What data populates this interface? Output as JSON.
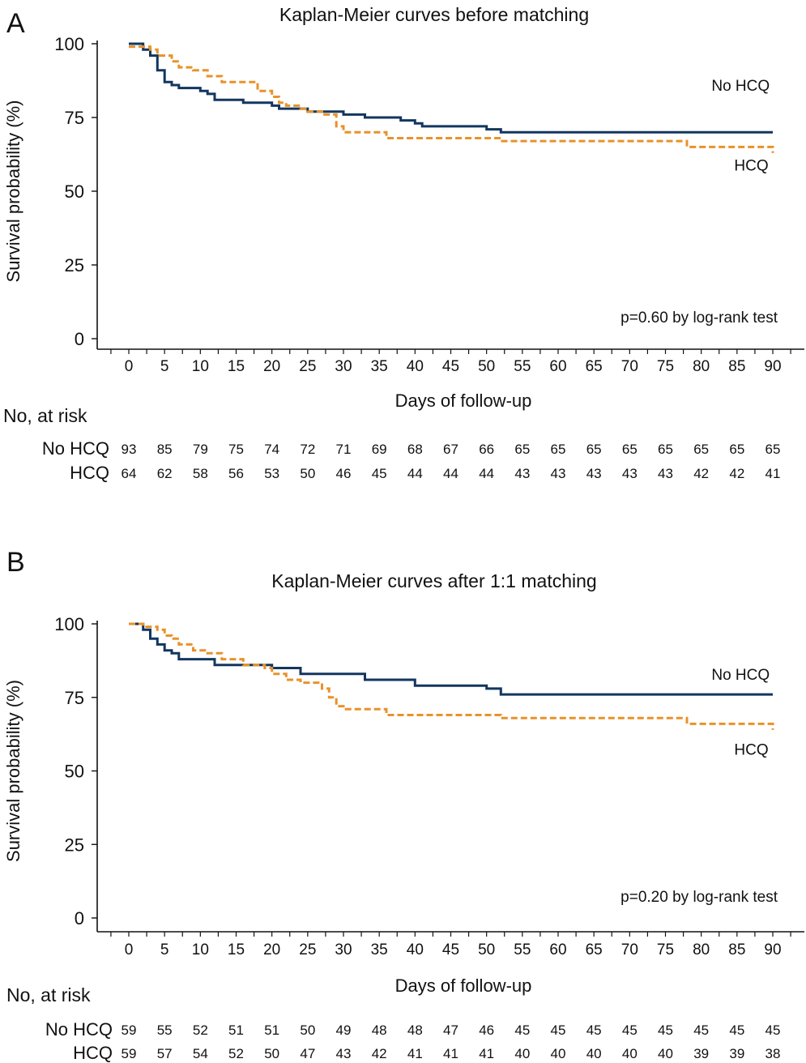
{
  "chart_data": [
    {
      "type": "line",
      "panel_label": "A",
      "title": "Kaplan-Meier curves before matching",
      "xlabel": "Days of follow-up",
      "ylabel": "Survival probability (%)",
      "xlim": [
        0,
        90
      ],
      "ylim": [
        0,
        100
      ],
      "xticks": [
        0,
        5,
        10,
        15,
        20,
        25,
        30,
        35,
        40,
        45,
        50,
        55,
        60,
        65,
        70,
        75,
        80,
        85,
        90
      ],
      "yticks": [
        0,
        25,
        50,
        75,
        100
      ],
      "grid": false,
      "annotation": "p=0.60 by log-rank test",
      "series": [
        {
          "name": "No HCQ",
          "color": "#13365f",
          "dash": "solid",
          "label_x": 85.5,
          "label_y": 84,
          "points": [
            [
              0,
              100
            ],
            [
              2,
              100
            ],
            [
              2,
              98
            ],
            [
              3,
              98
            ],
            [
              3,
              96
            ],
            [
              4,
              96
            ],
            [
              4,
              91
            ],
            [
              5,
              91
            ],
            [
              5,
              87
            ],
            [
              6,
              87
            ],
            [
              6,
              86
            ],
            [
              7,
              86
            ],
            [
              7,
              85
            ],
            [
              10,
              85
            ],
            [
              10,
              84
            ],
            [
              11,
              84
            ],
            [
              11,
              83
            ],
            [
              12,
              83
            ],
            [
              12,
              81
            ],
            [
              16,
              81
            ],
            [
              16,
              80
            ],
            [
              20,
              80
            ],
            [
              20,
              79
            ],
            [
              21,
              79
            ],
            [
              21,
              78
            ],
            [
              25,
              78
            ],
            [
              25,
              77
            ],
            [
              30,
              77
            ],
            [
              30,
              76
            ],
            [
              33,
              76
            ],
            [
              33,
              75
            ],
            [
              38,
              75
            ],
            [
              38,
              74
            ],
            [
              40,
              74
            ],
            [
              40,
              73
            ],
            [
              41,
              73
            ],
            [
              41,
              72
            ],
            [
              50,
              72
            ],
            [
              50,
              71
            ],
            [
              52,
              71
            ],
            [
              52,
              70
            ],
            [
              90,
              70
            ]
          ]
        },
        {
          "name": "HCQ",
          "color": "#e8922a",
          "dash": "dashed",
          "label_x": 87,
          "label_y": 57,
          "points": [
            [
              0,
              99
            ],
            [
              3,
              99
            ],
            [
              3,
              98
            ],
            [
              4,
              98
            ],
            [
              4,
              96
            ],
            [
              6,
              96
            ],
            [
              6,
              94
            ],
            [
              7,
              94
            ],
            [
              7,
              92
            ],
            [
              9,
              92
            ],
            [
              9,
              91
            ],
            [
              11,
              91
            ],
            [
              11,
              89
            ],
            [
              13,
              89
            ],
            [
              13,
              87
            ],
            [
              18,
              87
            ],
            [
              18,
              84
            ],
            [
              20,
              84
            ],
            [
              20,
              82
            ],
            [
              21,
              82
            ],
            [
              21,
              80
            ],
            [
              22,
              80
            ],
            [
              22,
              79
            ],
            [
              24,
              79
            ],
            [
              24,
              78
            ],
            [
              25,
              78
            ],
            [
              25,
              77
            ],
            [
              27,
              77
            ],
            [
              27,
              76
            ],
            [
              29,
              76
            ],
            [
              29,
              72
            ],
            [
              30,
              72
            ],
            [
              30,
              70
            ],
            [
              36,
              70
            ],
            [
              36,
              68
            ],
            [
              52,
              68
            ],
            [
              52,
              67
            ],
            [
              78,
              67
            ],
            [
              78,
              65
            ],
            [
              90,
              65
            ],
            [
              90,
              63
            ]
          ]
        }
      ],
      "at_risk": {
        "header": "No, at risk",
        "days": [
          0,
          5,
          10,
          15,
          20,
          25,
          30,
          35,
          40,
          45,
          50,
          55,
          60,
          65,
          70,
          75,
          80,
          85,
          90
        ],
        "rows": [
          {
            "label": "No HCQ",
            "values": [
              93,
              85,
              79,
              75,
              74,
              72,
              71,
              69,
              68,
              67,
              66,
              65,
              65,
              65,
              65,
              65,
              65,
              65,
              65
            ]
          },
          {
            "label": "HCQ",
            "values": [
              64,
              62,
              58,
              56,
              53,
              50,
              46,
              45,
              44,
              44,
              44,
              43,
              43,
              43,
              43,
              43,
              42,
              42,
              41
            ]
          }
        ]
      }
    },
    {
      "type": "line",
      "panel_label": "B",
      "title": "Kaplan-Meier curves after 1:1 matching",
      "xlabel": "Days of follow-up",
      "ylabel": "Survival probability (%)",
      "xlim": [
        0,
        90
      ],
      "ylim": [
        0,
        100
      ],
      "xticks": [
        0,
        5,
        10,
        15,
        20,
        25,
        30,
        35,
        40,
        45,
        50,
        55,
        60,
        65,
        70,
        75,
        80,
        85,
        90
      ],
      "yticks": [
        0,
        25,
        50,
        75,
        100
      ],
      "grid": false,
      "annotation": "p=0.20 by log-rank test",
      "series": [
        {
          "name": "No HCQ",
          "color": "#13365f",
          "dash": "solid",
          "label_x": 85.5,
          "label_y": 81,
          "points": [
            [
              0,
              100
            ],
            [
              2,
              100
            ],
            [
              2,
              98
            ],
            [
              3,
              98
            ],
            [
              3,
              95
            ],
            [
              4,
              95
            ],
            [
              4,
              93
            ],
            [
              5,
              93
            ],
            [
              5,
              91
            ],
            [
              6,
              91
            ],
            [
              6,
              90
            ],
            [
              7,
              90
            ],
            [
              7,
              88
            ],
            [
              12,
              88
            ],
            [
              12,
              86
            ],
            [
              20,
              86
            ],
            [
              20,
              85
            ],
            [
              24,
              85
            ],
            [
              24,
              83
            ],
            [
              33,
              83
            ],
            [
              33,
              81
            ],
            [
              40,
              81
            ],
            [
              40,
              79
            ],
            [
              50,
              79
            ],
            [
              50,
              78
            ],
            [
              52,
              78
            ],
            [
              52,
              76
            ],
            [
              90,
              76
            ]
          ]
        },
        {
          "name": "HCQ",
          "color": "#e8922a",
          "dash": "dashed",
          "label_x": 87,
          "label_y": 55.5,
          "points": [
            [
              0,
              100
            ],
            [
              2,
              100
            ],
            [
              2,
              99
            ],
            [
              4,
              99
            ],
            [
              4,
              98
            ],
            [
              5,
              98
            ],
            [
              5,
              96
            ],
            [
              6,
              96
            ],
            [
              6,
              95
            ],
            [
              7,
              95
            ],
            [
              7,
              93
            ],
            [
              9,
              93
            ],
            [
              9,
              91
            ],
            [
              11,
              91
            ],
            [
              11,
              90
            ],
            [
              13,
              90
            ],
            [
              13,
              88
            ],
            [
              16,
              88
            ],
            [
              16,
              86
            ],
            [
              19,
              86
            ],
            [
              19,
              85
            ],
            [
              20,
              85
            ],
            [
              20,
              83
            ],
            [
              22,
              83
            ],
            [
              22,
              81
            ],
            [
              24,
              81
            ],
            [
              24,
              80
            ],
            [
              27,
              80
            ],
            [
              27,
              78
            ],
            [
              28,
              78
            ],
            [
              28,
              75
            ],
            [
              29,
              75
            ],
            [
              29,
              72
            ],
            [
              30,
              72
            ],
            [
              30,
              71
            ],
            [
              36,
              71
            ],
            [
              36,
              69
            ],
            [
              52,
              69
            ],
            [
              52,
              68
            ],
            [
              78,
              68
            ],
            [
              78,
              66
            ],
            [
              90,
              66
            ],
            [
              90,
              64
            ]
          ]
        }
      ],
      "at_risk": {
        "header": "No, at risk",
        "days": [
          0,
          5,
          10,
          15,
          20,
          25,
          30,
          35,
          40,
          45,
          50,
          55,
          60,
          65,
          70,
          75,
          80,
          85,
          90
        ],
        "rows": [
          {
            "label": "No HCQ",
            "values": [
              59,
              55,
              52,
              51,
              51,
              50,
              49,
              48,
              48,
              47,
              46,
              45,
              45,
              45,
              45,
              45,
              45,
              45,
              45
            ]
          },
          {
            "label": "HCQ",
            "values": [
              59,
              57,
              54,
              52,
              50,
              47,
              43,
              42,
              41,
              41,
              41,
              40,
              40,
              40,
              40,
              40,
              39,
              39,
              38
            ]
          }
        ]
      }
    }
  ]
}
